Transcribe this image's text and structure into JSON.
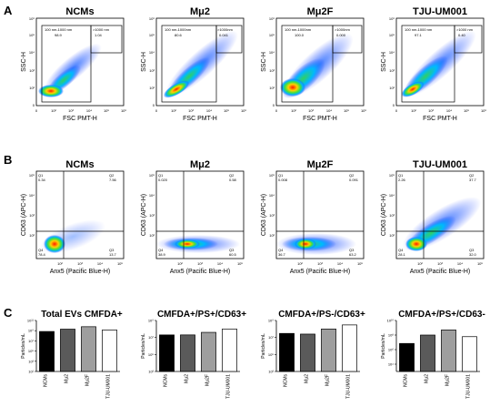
{
  "panel_a": {
    "letter": "A",
    "x_axis_label": "FSC PMT-H",
    "y_axis_label": "SSC-H",
    "x_ticks": [
      "0",
      "10²",
      "10³",
      "10⁴",
      "10⁵",
      "10⁶"
    ],
    "y_ticks": [
      "0",
      "10²",
      "10³",
      "10⁴",
      "10⁵",
      "10⁶"
    ],
    "plots": [
      {
        "title": "NCMs",
        "gate_main_label": "100 nm-1000 nm",
        "gate_main_value": "98.9",
        "gate_small_label": ">1000 nm",
        "gate_small_value": "1.04"
      },
      {
        "title": "Mμ2",
        "gate_main_label": "100 nm-1000nm",
        "gate_main_value": "80.6",
        "gate_small_label": ">1000nm",
        "gate_small_value": "0.041"
      },
      {
        "title": "Mμ2F",
        "gate_main_label": "100 nm-1000nm",
        "gate_main_value": "100.0",
        "gate_small_label": ">1000nm",
        "gate_small_value": "0.000"
      },
      {
        "title": "TJU-UM001",
        "gate_main_label": "100 nm-1000 nm",
        "gate_main_value": "97.1",
        "gate_small_label": ">1000 nm",
        "gate_small_value": "0.40"
      }
    ]
  },
  "panel_b": {
    "letter": "B",
    "x_axis_label": "Anx5 (Pacific Blue-H)",
    "y_axis_label": "CD63 (APC-H)",
    "x_ticks": [
      "10²",
      "10³",
      "10⁴",
      "10⁵"
    ],
    "y_ticks": [
      "10²",
      "10³",
      "10⁴",
      "10⁵"
    ],
    "quadrant_names": [
      "Q1",
      "Q2",
      "Q3",
      "Q4"
    ],
    "plots": [
      {
        "title": "NCMs",
        "q1": "0.34",
        "q2": "7.56",
        "q3": "13.7",
        "q4": "78.4"
      },
      {
        "title": "Mμ2",
        "q1": "0.020",
        "q2": "0.58",
        "q3": "60.5",
        "q4": "38.9"
      },
      {
        "title": "Mμ2F",
        "q1": "0.008",
        "q2": "0.091",
        "q3": "63.2",
        "q4": "36.7"
      },
      {
        "title": "TJU-UM001",
        "q1": "2.26",
        "q2": "37.7",
        "q3": "32.0",
        "q4": "28.1"
      }
    ]
  },
  "panel_c": {
    "letter": "C",
    "y_axis_label": "Particles/mL",
    "bar_colors": [
      "#000000",
      "#5a5a5a",
      "#9e9e9e",
      "#ffffff"
    ],
    "chart_data": [
      {
        "type": "bar",
        "title": "Total EVs CMFDA+",
        "categories": [
          "NCMs",
          "Mμ2",
          "Mμ2F",
          "TJU-UM001"
        ],
        "values": [
          700000000.0,
          2000000000.0,
          6000000000.0,
          1400000000.0
        ],
        "ylabel": "Particles/mL",
        "yscale": "log",
        "ylim": [
          10.0,
          100000000000.0
        ],
        "tick_exponents": [
          1,
          3,
          5,
          7,
          9,
          11
        ]
      },
      {
        "type": "bar",
        "title": "CMFDA+/PS+/CD63+",
        "categories": [
          "NCMs",
          "Mμ2",
          "Mμ2F",
          "TJU-UM001"
        ],
        "values": [
          20000000.0,
          20000000.0,
          40000000.0,
          100000000.0
        ],
        "ylabel": "Particles/mL",
        "yscale": "log",
        "ylim": [
          1000.0,
          1000000000.0
        ],
        "tick_exponents": [
          3,
          5,
          7,
          9
        ]
      },
      {
        "type": "bar",
        "title": "CMFDA+/PS-/CD63+",
        "categories": [
          "NCMs",
          "Mμ2",
          "Mμ2F",
          "TJU-UM001"
        ],
        "values": [
          30000000.0,
          25000000.0,
          100000000.0,
          300000000.0
        ],
        "ylabel": "Particles/mL",
        "yscale": "log",
        "ylim": [
          1000.0,
          1000000000.0
        ],
        "tick_exponents": [
          3,
          5,
          7,
          9
        ]
      },
      {
        "type": "bar",
        "title": "CMFDA+/PS+/CD63-",
        "categories": [
          "NCMs",
          "Mμ2",
          "Mμ2F",
          "TJU-UM001"
        ],
        "values": [
          7000000.0,
          100000000.0,
          500000000.0,
          60000000.0
        ],
        "ylabel": "Particles/mL",
        "yscale": "log",
        "ylim": [
          1000.0,
          10000000000.0
        ],
        "tick_exponents": [
          4,
          6,
          8,
          10
        ]
      }
    ]
  }
}
